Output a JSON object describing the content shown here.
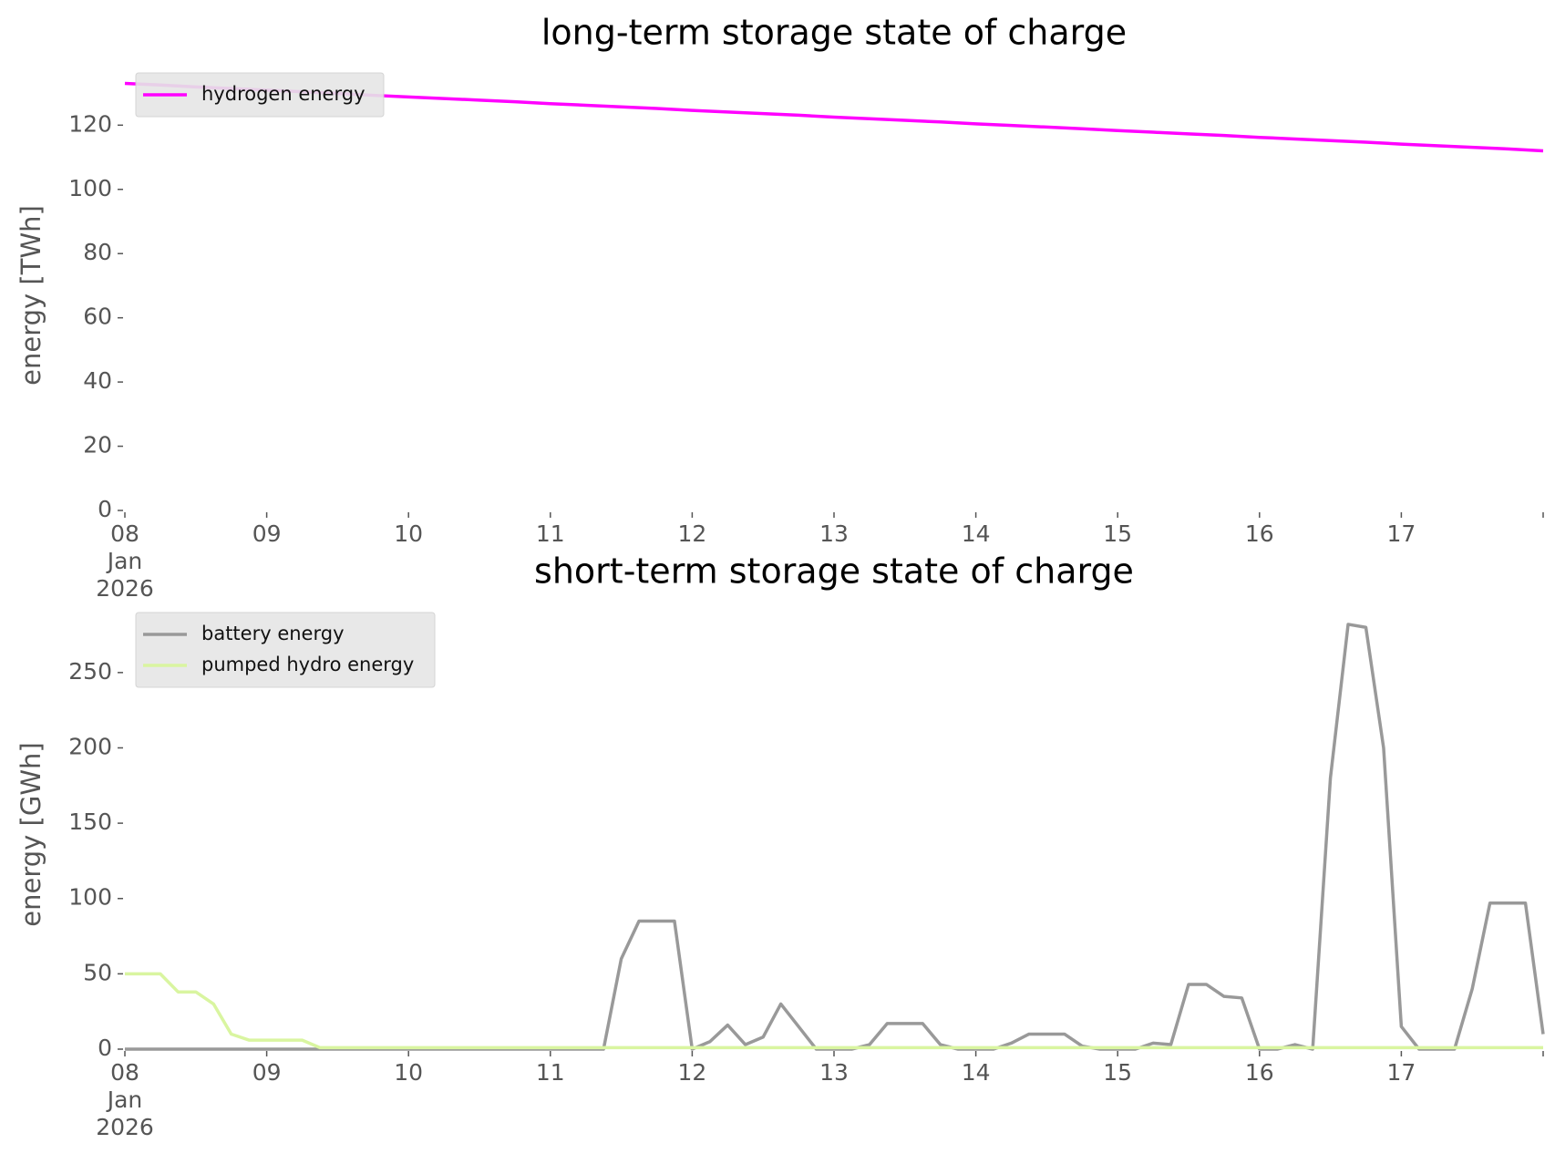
{
  "chart_data": [
    {
      "type": "line",
      "title": "long-term storage state of charge",
      "ylabel": "energy [TWh]",
      "x": [
        "2026-01-08T00:00",
        "2026-01-08T06:00",
        "2026-01-08T12:00",
        "2026-01-08T18:00",
        "2026-01-09T00:00",
        "2026-01-09T06:00",
        "2026-01-09T12:00",
        "2026-01-09T18:00",
        "2026-01-10T00:00",
        "2026-01-10T06:00",
        "2026-01-10T12:00",
        "2026-01-10T18:00",
        "2026-01-11T00:00",
        "2026-01-11T06:00",
        "2026-01-11T12:00",
        "2026-01-11T18:00",
        "2026-01-12T00:00",
        "2026-01-12T06:00",
        "2026-01-12T12:00",
        "2026-01-12T18:00",
        "2026-01-13T00:00",
        "2026-01-13T06:00",
        "2026-01-13T12:00",
        "2026-01-13T18:00",
        "2026-01-14T00:00",
        "2026-01-14T06:00",
        "2026-01-14T12:00",
        "2026-01-14T18:00",
        "2026-01-15T00:00",
        "2026-01-15T06:00",
        "2026-01-15T12:00",
        "2026-01-15T18:00",
        "2026-01-16T00:00",
        "2026-01-16T06:00",
        "2026-01-16T12:00",
        "2026-01-16T18:00",
        "2026-01-17T00:00",
        "2026-01-17T06:00",
        "2026-01-17T12:00",
        "2026-01-17T18:00",
        "2026-01-18T00:00"
      ],
      "series": [
        {
          "name": "hydrogen energy",
          "color": "#ff00ff",
          "values": [
            133,
            132.5,
            131.9,
            131.4,
            130.9,
            130.4,
            129.9,
            129.3,
            128.8,
            128.3,
            127.8,
            127.3,
            126.7,
            126.2,
            125.7,
            125.2,
            124.6,
            124.1,
            123.6,
            123.1,
            122.5,
            122,
            121.5,
            121,
            120.4,
            119.9,
            119.4,
            118.9,
            118.3,
            117.8,
            117.3,
            116.8,
            116.2,
            115.7,
            115.2,
            114.7,
            114.1,
            113.6,
            113.1,
            112.6,
            112
          ]
        }
      ],
      "xlim": [
        "2026-01-08T00:00",
        "2026-01-18T00:00"
      ],
      "xticks": [
        {
          "value": "2026-01-08T00:00",
          "label": "08\nJan\n2026"
        },
        {
          "value": "2026-01-09T00:00",
          "label": "09"
        },
        {
          "value": "2026-01-10T00:00",
          "label": "10"
        },
        {
          "value": "2026-01-11T00:00",
          "label": "11"
        },
        {
          "value": "2026-01-12T00:00",
          "label": "12"
        },
        {
          "value": "2026-01-13T00:00",
          "label": "13"
        },
        {
          "value": "2026-01-14T00:00",
          "label": "14"
        },
        {
          "value": "2026-01-15T00:00",
          "label": "15"
        },
        {
          "value": "2026-01-16T00:00",
          "label": "16"
        },
        {
          "value": "2026-01-17T00:00",
          "label": "17"
        },
        {
          "value": "2026-01-18T00:00",
          "label": null
        }
      ],
      "ylim": [
        0,
        134
      ],
      "yticks": [
        0,
        20,
        40,
        60,
        80,
        100,
        120
      ],
      "grid": false,
      "legend": "upper left"
    },
    {
      "type": "line",
      "title": "short-term storage state of charge",
      "ylabel": "energy [GWh]",
      "x": [
        "2026-01-08T00:00",
        "2026-01-08T03:00",
        "2026-01-08T06:00",
        "2026-01-08T09:00",
        "2026-01-08T12:00",
        "2026-01-08T15:00",
        "2026-01-08T18:00",
        "2026-01-08T21:00",
        "2026-01-09T00:00",
        "2026-01-09T03:00",
        "2026-01-09T06:00",
        "2026-01-09T09:00",
        "2026-01-09T12:00",
        "2026-01-09T15:00",
        "2026-01-09T18:00",
        "2026-01-09T21:00",
        "2026-01-10T00:00",
        "2026-01-10T03:00",
        "2026-01-10T06:00",
        "2026-01-10T09:00",
        "2026-01-10T12:00",
        "2026-01-10T15:00",
        "2026-01-10T18:00",
        "2026-01-10T21:00",
        "2026-01-11T00:00",
        "2026-01-11T03:00",
        "2026-01-11T06:00",
        "2026-01-11T09:00",
        "2026-01-11T12:00",
        "2026-01-11T15:00",
        "2026-01-11T18:00",
        "2026-01-11T21:00",
        "2026-01-12T00:00",
        "2026-01-12T03:00",
        "2026-01-12T06:00",
        "2026-01-12T09:00",
        "2026-01-12T12:00",
        "2026-01-12T15:00",
        "2026-01-12T18:00",
        "2026-01-12T21:00",
        "2026-01-13T00:00",
        "2026-01-13T03:00",
        "2026-01-13T06:00",
        "2026-01-13T09:00",
        "2026-01-13T12:00",
        "2026-01-13T15:00",
        "2026-01-13T18:00",
        "2026-01-13T21:00",
        "2026-01-14T00:00",
        "2026-01-14T03:00",
        "2026-01-14T06:00",
        "2026-01-14T09:00",
        "2026-01-14T12:00",
        "2026-01-14T15:00",
        "2026-01-14T18:00",
        "2026-01-14T21:00",
        "2026-01-15T00:00",
        "2026-01-15T03:00",
        "2026-01-15T06:00",
        "2026-01-15T09:00",
        "2026-01-15T12:00",
        "2026-01-15T15:00",
        "2026-01-15T18:00",
        "2026-01-15T21:00",
        "2026-01-16T00:00",
        "2026-01-16T03:00",
        "2026-01-16T06:00",
        "2026-01-16T09:00",
        "2026-01-16T12:00",
        "2026-01-16T15:00",
        "2026-01-16T18:00",
        "2026-01-16T21:00",
        "2026-01-17T00:00",
        "2026-01-17T03:00",
        "2026-01-17T06:00",
        "2026-01-17T09:00",
        "2026-01-17T12:00",
        "2026-01-17T15:00",
        "2026-01-17T18:00",
        "2026-01-17T21:00",
        "2026-01-18T00:00"
      ],
      "series": [
        {
          "name": "battery energy",
          "color": "#999999",
          "values": [
            0,
            0,
            0,
            0,
            0,
            0,
            0,
            0,
            0,
            0,
            0,
            0,
            0,
            0,
            0,
            0,
            0,
            0,
            0,
            0,
            0,
            0,
            0,
            0,
            0,
            0,
            0,
            0,
            60,
            85,
            85,
            85,
            0,
            5,
            16,
            3,
            8,
            30,
            15,
            0,
            0,
            0,
            3,
            17,
            17,
            17,
            3,
            0,
            0,
            0,
            4,
            10,
            10,
            10,
            2,
            0,
            0,
            0,
            4,
            3,
            43,
            43,
            35,
            34,
            0,
            0,
            3,
            0,
            180,
            282,
            280,
            200,
            15,
            0,
            0,
            0,
            40,
            97,
            97,
            97,
            10
          ]
        },
        {
          "name": "pumped hydro energy",
          "color": "#d9f5a0",
          "values": [
            50,
            50,
            50,
            38,
            38,
            30,
            10,
            6,
            6,
            6,
            6,
            1,
            1,
            1,
            1,
            1,
            1,
            1,
            1,
            1,
            1,
            1,
            1,
            1,
            1,
            1,
            1,
            1,
            1,
            1,
            1,
            1,
            1,
            1,
            1,
            1,
            1,
            1,
            1,
            1,
            1,
            1,
            1,
            1,
            1,
            1,
            1,
            1,
            1,
            1,
            1,
            1,
            1,
            1,
            1,
            1,
            1,
            1,
            1,
            1,
            1,
            1,
            1,
            1,
            1,
            1,
            1,
            1,
            1,
            1,
            1,
            1,
            1,
            1,
            1,
            1,
            1,
            1,
            1,
            1,
            1
          ]
        }
      ],
      "xlim": [
        "2026-01-08T00:00",
        "2026-01-18T00:00"
      ],
      "xticks": [
        {
          "value": "2026-01-08T00:00",
          "label": "08\nJan\n2026"
        },
        {
          "value": "2026-01-09T00:00",
          "label": "09"
        },
        {
          "value": "2026-01-10T00:00",
          "label": "10"
        },
        {
          "value": "2026-01-11T00:00",
          "label": "11"
        },
        {
          "value": "2026-01-12T00:00",
          "label": "12"
        },
        {
          "value": "2026-01-13T00:00",
          "label": "13"
        },
        {
          "value": "2026-01-14T00:00",
          "label": "14"
        },
        {
          "value": "2026-01-15T00:00",
          "label": "15"
        },
        {
          "value": "2026-01-16T00:00",
          "label": "16"
        },
        {
          "value": "2026-01-17T00:00",
          "label": "17"
        },
        {
          "value": "2026-01-18T00:00",
          "label": null
        }
      ],
      "ylim": [
        0,
        285
      ],
      "yticks": [
        0,
        50,
        100,
        150,
        200,
        250
      ],
      "grid": false,
      "legend": "upper left"
    }
  ]
}
